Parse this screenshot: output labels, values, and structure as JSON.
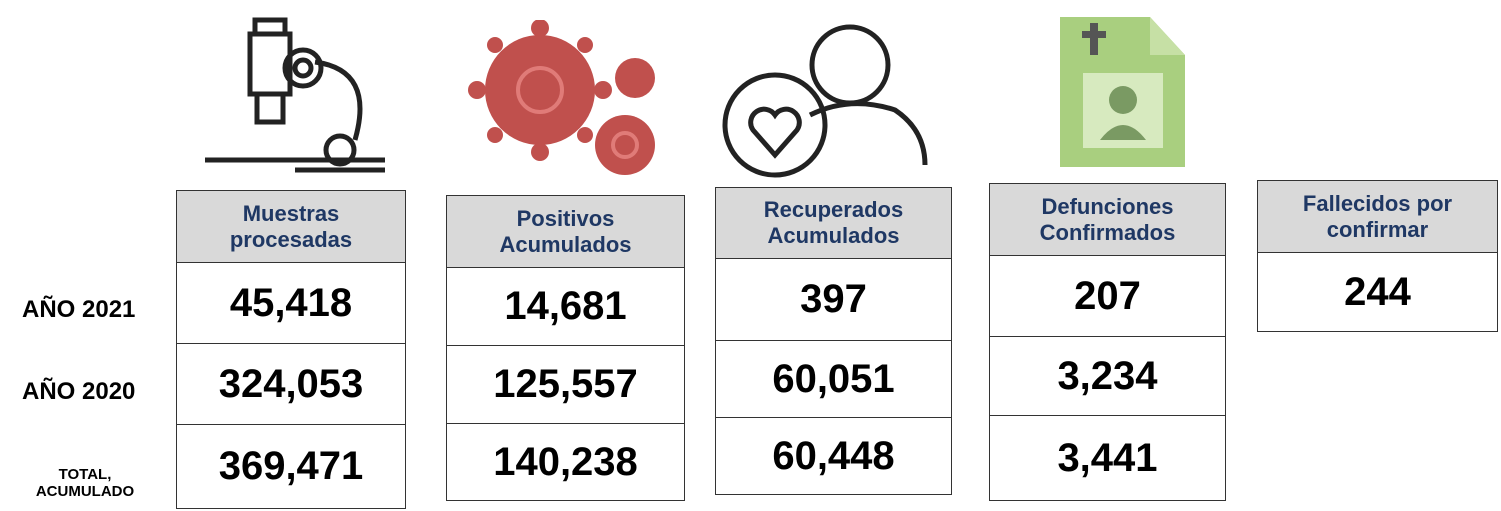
{
  "row_labels": [
    "AÑO 2021",
    "AÑO 2020",
    "TOTAL, ACUMULADO"
  ],
  "columns": [
    {
      "title": "Muestras procesadas",
      "values": [
        "45,418",
        "324,053",
        "369,471"
      ]
    },
    {
      "title": "Positivos Acumulados",
      "values": [
        "14,681",
        "125,557",
        "140,238"
      ]
    },
    {
      "title": "Recuperados Acumulados",
      "values": [
        "397",
        "60,051",
        "60,448"
      ]
    },
    {
      "title": "Defunciones Confirmados",
      "values": [
        "207",
        "3,234",
        "3,441"
      ]
    },
    {
      "title": "Fallecidos por confirmar",
      "values": [
        "244"
      ]
    }
  ]
}
